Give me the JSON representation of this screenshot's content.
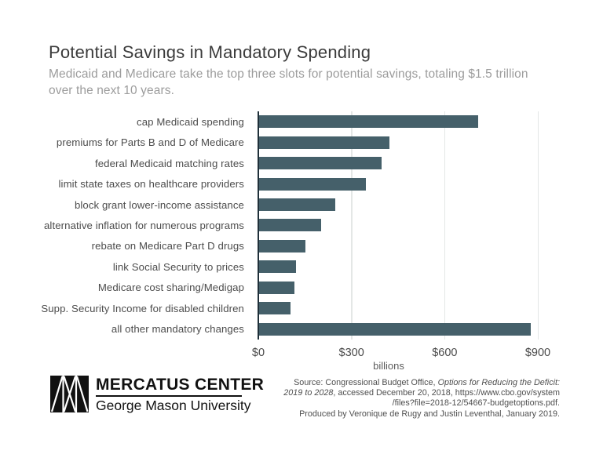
{
  "title": "Potential Savings in Mandatory Spending",
  "subtitle_lines": [
    "Medicaid and Medicare take the top three slots for potential savings, totaling $1.5 trillion",
    "over the next 10 years."
  ],
  "colors": {
    "bar": "#45606a",
    "axis": "#20303a",
    "gridline": "#e4e7e6",
    "title_text": "#3b3b3b",
    "subtitle_text": "#9c9c9c",
    "logo_black": "#111111"
  },
  "chart_data": {
    "type": "bar",
    "orientation": "horizontal",
    "title": "Potential Savings in Mandatory Spending",
    "categories": [
      "cap Medicaid spending",
      "premiums for Parts B and D of Medicare",
      "federal Medicaid matching rates",
      "limit state taxes on healthcare providers",
      "block grant lower-income assistance",
      "alternative inflation for numerous programs",
      "rebate on Medicare Part D drugs",
      "link Social Security to prices",
      "Medicare cost sharing/Medigap",
      "Supp. Security Income for disabled children",
      "all other mandatory changes"
    ],
    "values": [
      705,
      420,
      395,
      345,
      245,
      200,
      150,
      120,
      115,
      100,
      875
    ],
    "unit": "billions of dollars",
    "xlabel": "billions",
    "x_ticks": [
      "$0",
      "$300",
      "$600",
      "$900"
    ],
    "x_tick_values": [
      0,
      300,
      600,
      900
    ],
    "xlim": [
      0,
      900
    ],
    "grid": true,
    "legend": "none",
    "bar_color": "#45606a"
  },
  "footer": {
    "logo": {
      "org": "MERCATUS CENTER",
      "university": "George Mason University"
    },
    "source_lines": [
      [
        {
          "t": "Source: Congressional Budget Office, ",
          "i": false
        },
        {
          "t": "Options for Reducing the Deficit:",
          "i": true
        }
      ],
      [
        {
          "t": "2019 to 2028",
          "i": true
        },
        {
          "t": ", accessed December 20, 2018, https://www.cbo.gov/system",
          "i": false
        }
      ],
      [
        {
          "t": "/files?file=2018-12/54667-budgetoptions.pdf.",
          "i": false
        }
      ],
      [
        {
          "t": "Produced by Veronique de Rugy and Justin Leventhal, January 2019.",
          "i": false
        }
      ]
    ]
  }
}
